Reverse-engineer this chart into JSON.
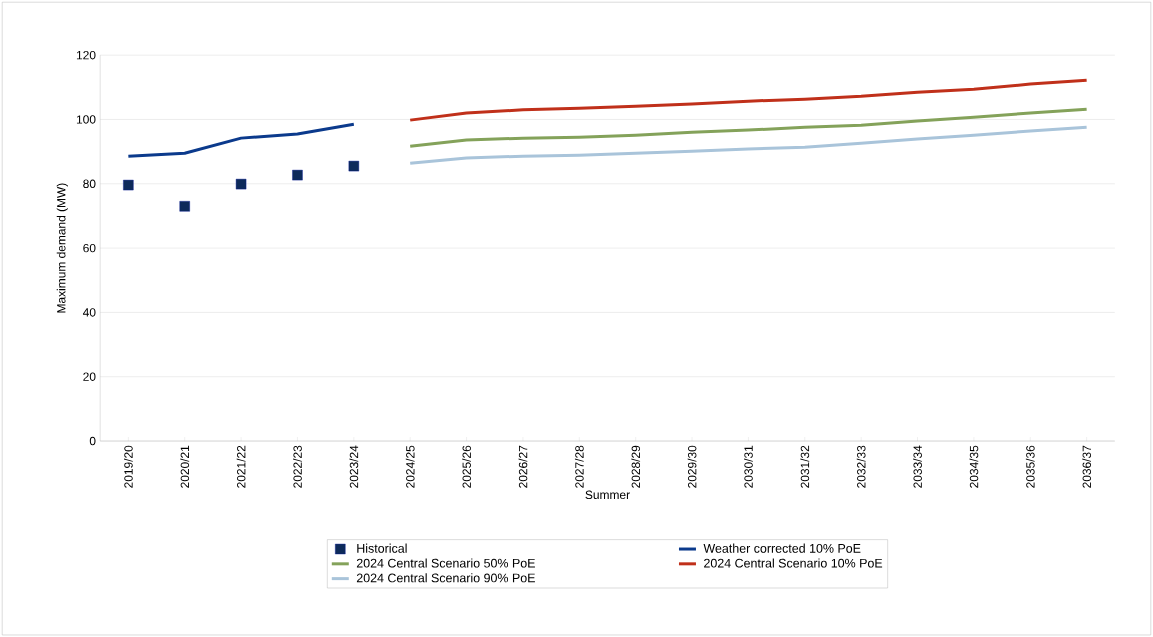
{
  "chart_data": {
    "type": "line",
    "xlabel": "Summer",
    "ylabel": "Maximum demand (MW)",
    "categories": [
      "2019/20",
      "2020/21",
      "2021/22",
      "2022/23",
      "2023/24",
      "2024/25",
      "2025/26",
      "2026/27",
      "2027/28",
      "2028/29",
      "2029/30",
      "2030/31",
      "2031/32",
      "2032/33",
      "2033/34",
      "2034/35",
      "2035/36",
      "2036/37"
    ],
    "series": [
      {
        "name": "Historical",
        "type": "scatter",
        "marker": "square",
        "color": "#0d2a5a",
        "values": [
          79.6,
          73.0,
          79.9,
          82.7,
          85.5,
          null,
          null,
          null,
          null,
          null,
          null,
          null,
          null,
          null,
          null,
          null,
          null,
          null
        ]
      },
      {
        "name": "Weather corrected 10% PoE",
        "color": "#0b3a8c",
        "values": [
          88.6,
          89.5,
          94.2,
          95.5,
          98.5,
          null,
          null,
          null,
          null,
          null,
          null,
          null,
          null,
          null,
          null,
          null,
          null,
          null
        ]
      },
      {
        "name": "2024 Central Scenario 50% PoE",
        "color": "#84a25a",
        "values": [
          null,
          null,
          null,
          null,
          null,
          91.7,
          93.6,
          94.2,
          94.5,
          95.1,
          96.0,
          96.7,
          97.6,
          98.2,
          99.5,
          100.7,
          102.0,
          103.2
        ]
      },
      {
        "name": "2024 Central Scenario 10% PoE",
        "color": "#c0301a",
        "values": [
          null,
          null,
          null,
          null,
          null,
          99.8,
          102.0,
          103.0,
          103.5,
          104.1,
          104.8,
          105.7,
          106.3,
          107.2,
          108.5,
          109.4,
          111.0,
          112.2
        ]
      },
      {
        "name": "2024 Central Scenario 90% PoE",
        "color": "#a9c4da",
        "values": [
          null,
          null,
          null,
          null,
          null,
          86.4,
          88.0,
          88.6,
          88.9,
          89.5,
          90.1,
          90.8,
          91.4,
          92.6,
          93.9,
          95.1,
          96.4,
          97.6
        ]
      }
    ],
    "ylim": [
      0,
      120
    ],
    "yticks": [
      0,
      20,
      40,
      60,
      80,
      100,
      120
    ],
    "grid": "y",
    "legend": "bottom"
  }
}
